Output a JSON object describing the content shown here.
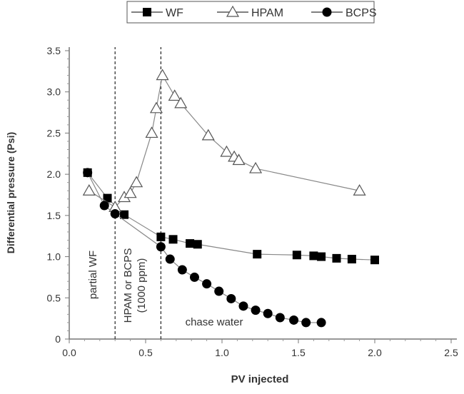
{
  "chart_data": {
    "type": "line",
    "title": "",
    "xlabel": "PV injected",
    "ylabel": "Differential pressure (Psi)",
    "xlim": [
      0,
      2.5
    ],
    "ylim": [
      0,
      3.5
    ],
    "xticks": [
      "0.0",
      "0.5",
      "1.0",
      "1.5",
      "2.0",
      "2.5"
    ],
    "yticks": [
      "0",
      "0.5",
      "1.0",
      "1.5",
      "2.0",
      "2.5",
      "3.0",
      "3.5"
    ],
    "grid": false,
    "legend_position": "top",
    "vlines": [
      0.3,
      0.6
    ],
    "annotations": [
      "partial WF",
      "HPAM or BCPS",
      "(1000 ppm)",
      "chase water"
    ],
    "series": [
      {
        "name": "WF",
        "marker": "square",
        "x": [
          0.12,
          0.25,
          0.36,
          0.6,
          0.68,
          0.79,
          0.84,
          1.23,
          1.49,
          1.6,
          1.65,
          1.75,
          1.85,
          2.0
        ],
        "y": [
          2.02,
          1.71,
          1.51,
          1.24,
          1.21,
          1.16,
          1.15,
          1.03,
          1.02,
          1.01,
          1.0,
          0.98,
          0.97,
          0.96
        ]
      },
      {
        "name": "HPAM",
        "marker": "triangle",
        "x": [
          0.13,
          0.3,
          0.36,
          0.4,
          0.44,
          0.54,
          0.57,
          0.61,
          0.69,
          0.73,
          0.91,
          1.03,
          1.08,
          1.11,
          1.22,
          1.9
        ],
        "y": [
          1.8,
          1.6,
          1.72,
          1.77,
          1.9,
          2.5,
          2.8,
          3.2,
          2.95,
          2.86,
          2.47,
          2.27,
          2.21,
          2.17,
          2.07,
          1.8
        ]
      },
      {
        "name": "BCPS",
        "marker": "circle",
        "x": [
          0.12,
          0.23,
          0.3,
          0.6,
          0.66,
          0.74,
          0.82,
          0.9,
          0.98,
          1.06,
          1.14,
          1.22,
          1.3,
          1.38,
          1.47,
          1.55,
          1.65
        ],
        "y": [
          2.02,
          1.62,
          1.52,
          1.12,
          0.97,
          0.84,
          0.75,
          0.67,
          0.58,
          0.49,
          0.4,
          0.35,
          0.31,
          0.26,
          0.23,
          0.2,
          0.2
        ]
      }
    ]
  }
}
